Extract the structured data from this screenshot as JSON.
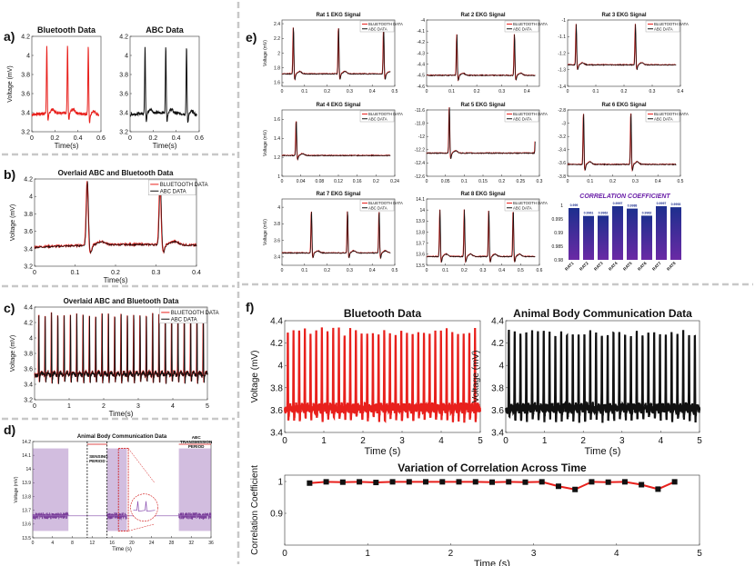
{
  "panel_letters": {
    "a": "a)",
    "b": "b)",
    "c": "c)",
    "d": "d)",
    "e": "e)",
    "f": "f)"
  },
  "colors": {
    "bluetooth": "#e8201c",
    "abc": "#111111",
    "bar_top": "#1d2f8e",
    "bar_bottom": "#6a2aa5",
    "corr_title": "#6a1fa8",
    "purple": "#9b6cb8",
    "divider": "#c8c8c8"
  },
  "legend": {
    "bluetooth": "BLUETOOTH DATA",
    "abc": "ABC DATA"
  },
  "axis_labels": {
    "voltage": "Voltage (mV)",
    "time": "Time(s)",
    "time_f": "Time (s)",
    "corr": "Correlation Coefficient",
    "voltage_d": "Voltage (mV)",
    "time_d": "Time (s)"
  },
  "chart_data": [
    {
      "id": "a1",
      "type": "line",
      "title": "Bluetooth Data",
      "xlabel": "Time(s)",
      "ylabel": "Voltage (mV)",
      "xlim": [
        0,
        0.6
      ],
      "ylim": [
        3.2,
        4.2
      ],
      "xticks": [
        "0",
        "0.2",
        "0.4",
        "0.6"
      ],
      "yticks": [
        "3.2",
        "3.4",
        "3.6",
        "3.8",
        "4",
        "4.2"
      ],
      "series": [
        {
          "name": "BLUETOOTH DATA",
          "peaks": [
            0.13,
            0.31,
            0.49
          ]
        }
      ]
    },
    {
      "id": "a2",
      "type": "line",
      "title": "ABC Data",
      "xlabel": "Time(s)",
      "ylabel": "",
      "xlim": [
        0,
        0.6
      ],
      "ylim": [
        3.2,
        4.2
      ],
      "xticks": [
        "0",
        "0.2",
        "0.4",
        "0.6"
      ],
      "yticks": [
        "3.2",
        "3.4",
        "3.6",
        "3.8",
        "4",
        "4.2"
      ],
      "series": [
        {
          "name": "ABC DATA",
          "peaks": [
            0.13,
            0.31,
            0.49
          ]
        }
      ]
    },
    {
      "id": "b",
      "type": "line",
      "title": "Overlaid ABC and Bluetooth Data",
      "xlabel": "Time(s)",
      "ylabel": "Voltage (mV)",
      "xlim": [
        0,
        0.4
      ],
      "ylim": [
        3.2,
        4.2
      ],
      "xticks": [
        "0",
        "0.1",
        "0.2",
        "0.3",
        "0.4"
      ],
      "yticks": [
        "3.2",
        "3.4",
        "3.6",
        "3.8",
        "4",
        "4.2"
      ],
      "legend": [
        "BLUETOOTH DATA",
        "ABC DATA"
      ]
    },
    {
      "id": "c",
      "type": "line",
      "title": "Overlaid ABC and Bluetooth Data",
      "xlabel": "Time(s)",
      "ylabel": "Voltage (mV)",
      "xlim": [
        0,
        5
      ],
      "ylim": [
        3.2,
        4.4
      ],
      "xticks": [
        "0",
        "1",
        "2",
        "3",
        "4",
        "5"
      ],
      "yticks": [
        "3.2",
        "3.4",
        "3.6",
        "3.8",
        "4",
        "4.2",
        "4.4"
      ],
      "legend": [
        "BLUETOOTH DATA",
        "ABC DATA"
      ]
    },
    {
      "id": "d",
      "type": "line",
      "title": "Animal Body Communication Data",
      "xlabel": "Time (s)",
      "ylabel": "Voltage (mV)",
      "xlim": [
        0,
        36
      ],
      "ylim": [
        13.5,
        14.2
      ],
      "xticks": [
        "0",
        "4",
        "8",
        "12",
        "16",
        "20",
        "24",
        "28",
        "32",
        "36"
      ],
      "yticks": [
        "13.5",
        "13.6",
        "13.7",
        "13.8",
        "13.9",
        "14",
        "14.1",
        "14.2"
      ],
      "annotations": [
        "SENSING PERIOD",
        "ABC TRANSMISSION PERIOD"
      ]
    },
    {
      "id": "e1",
      "type": "line",
      "title": "Rat 1 EKG Signal",
      "xlabel": "",
      "ylabel": "Voltage (mV)",
      "xlim": [
        0,
        0.5
      ],
      "ylim": [
        1.55,
        2.45
      ],
      "xticks": [
        "0",
        "0.1",
        "0.2",
        "0.3",
        "0.4",
        "0.5"
      ],
      "yticks": [
        "1.6",
        "1.8",
        "2",
        "2.2",
        "2.4"
      ],
      "legend": [
        "BLUETOOTH DATA",
        "ABC DATA"
      ]
    },
    {
      "id": "e2",
      "type": "line",
      "title": "Rat 2 EKG Signal",
      "xlabel": "",
      "ylabel": "",
      "xlim": [
        0,
        0.45
      ],
      "ylim": [
        -4.6,
        -4.0
      ],
      "xticks": [
        "0",
        "0.1",
        "0.2",
        "0.3",
        "0.4"
      ],
      "yticks": [
        "-4.6",
        "-4.5",
        "-4.4",
        "-4.3",
        "-4.2",
        "-4.1",
        "-4"
      ],
      "legend": [
        "BLUETOOTH DATA",
        "ABC DATA"
      ]
    },
    {
      "id": "e3",
      "type": "line",
      "title": "Rat 3 EKG Signal",
      "xlabel": "",
      "ylabel": "",
      "xlim": [
        0,
        0.4
      ],
      "ylim": [
        -1.4,
        -1.0
      ],
      "xticks": [
        "0",
        "0.1",
        "0.2",
        "0.3",
        "0.4"
      ],
      "yticks": [
        "-1.4",
        "-1.3",
        "-1.2",
        "-1.1",
        "-1"
      ],
      "legend": [
        "BLUETOOTH DATA",
        "ABC DATA"
      ]
    },
    {
      "id": "e4",
      "type": "line",
      "title": "Rat 4 EKG Signal",
      "xlabel": "",
      "ylabel": "Voltage (mV)",
      "xlim": [
        0,
        0.24
      ],
      "ylim": [
        1.0,
        1.7
      ],
      "xticks": [
        "0",
        "0.04",
        "0.08",
        "0.12",
        "0.16",
        "0.2",
        "0.24"
      ],
      "yticks": [
        "1",
        "1.2",
        "1.4",
        "1.6"
      ],
      "legend": [
        "BLUETOOTH DATA",
        "ABC DATA"
      ]
    },
    {
      "id": "e5",
      "type": "line",
      "title": "Rat 5 EKG Signal",
      "xlabel": "",
      "ylabel": "",
      "xlim": [
        0,
        0.3
      ],
      "ylim": [
        -12.6,
        -11.6
      ],
      "xticks": [
        "0",
        "0.05",
        "0.1",
        "0.15",
        "0.2",
        "0.25",
        "0.3"
      ],
      "yticks": [
        "-12.6",
        "-12.4",
        "-12.2",
        "-12",
        "-11.8",
        "-11.6"
      ],
      "legend": [
        "BLUETOOTH DATA",
        "ABC DATA"
      ]
    },
    {
      "id": "e6",
      "type": "line",
      "title": "Rat 6 EKG Signal",
      "xlabel": "",
      "ylabel": "",
      "xlim": [
        0,
        0.5
      ],
      "ylim": [
        -3.8,
        -2.8
      ],
      "xticks": [
        "0",
        "0.1",
        "0.2",
        "0.3",
        "0.4",
        "0.5"
      ],
      "yticks": [
        "-3.8",
        "-3.6",
        "-3.4",
        "-3.2",
        "-3",
        "-2.8"
      ],
      "legend": [
        "BLUETOOTH DATA",
        "ABC DATA"
      ]
    },
    {
      "id": "e7",
      "type": "line",
      "title": "Rat 7 EKG Signal",
      "xlabel": "",
      "ylabel": "Voltage (mV)",
      "xlim": [
        0,
        0.5
      ],
      "ylim": [
        3.3,
        4.1
      ],
      "xticks": [
        "0",
        "0.1",
        "0.2",
        "0.3",
        "0.4",
        "0.5"
      ],
      "yticks": [
        "3.4",
        "3.6",
        "3.8",
        "4"
      ],
      "legend": [
        "BLUETOOTH DATA",
        "ABC DATA"
      ]
    },
    {
      "id": "e8",
      "type": "line",
      "title": "Rat 8 EKG Signal",
      "xlabel": "",
      "ylabel": "",
      "xlim": [
        0,
        0.6
      ],
      "ylim": [
        13.5,
        14.1
      ],
      "xticks": [
        "0",
        "0.1",
        "0.2",
        "0.3",
        "0.4",
        "0.5",
        "0.6"
      ],
      "yticks": [
        "13.5",
        "13.6",
        "13.7",
        "13.8",
        "13.9",
        "14",
        "14.1"
      ],
      "legend": [
        "BLUETOOTH DATA",
        "ABC DATA"
      ]
    },
    {
      "id": "corr",
      "type": "bar",
      "title": "CORRELATION COEFFICIENT",
      "categories": [
        "RAT1",
        "RAT2",
        "RAT3",
        "RAT4",
        "RAT5",
        "RAT6",
        "RAT7",
        "RAT8"
      ],
      "values": [
        0.999,
        0.9961,
        0.9962,
        0.9997,
        0.9988,
        0.9962,
        0.9997,
        0.9993
      ],
      "value_labels": [
        "0.999",
        "0.9961",
        "0.9962",
        "0.9997",
        "0.9988",
        "0.9962",
        "0.9997",
        "0.9993"
      ],
      "ylim": [
        0.98,
        1.0
      ],
      "yticks": [
        "0.98",
        "0.985",
        "0.99",
        "0.995",
        "1"
      ]
    },
    {
      "id": "f1",
      "type": "line",
      "title": "Bluetooth Data",
      "xlabel": "Time (s)",
      "ylabel": "Voltage (mV)",
      "xlim": [
        0,
        5
      ],
      "ylim": [
        3.4,
        4.4
      ],
      "xticks": [
        "0",
        "1",
        "2",
        "3",
        "4",
        "5"
      ],
      "yticks": [
        "3.4",
        "3.6",
        "3.8",
        "4",
        "4.2",
        "4.4"
      ]
    },
    {
      "id": "f2",
      "type": "line",
      "title": "Animal Body Communication Data",
      "xlabel": "Time (s)",
      "ylabel": "Voltage (mV)",
      "xlim": [
        0,
        5
      ],
      "ylim": [
        3.4,
        4.4
      ],
      "xticks": [
        "0",
        "1",
        "2",
        "3",
        "4",
        "5"
      ],
      "yticks": [
        "3.4",
        "3.6",
        "3.8",
        "4",
        "4.2",
        "4.4"
      ]
    },
    {
      "id": "f3",
      "type": "line",
      "title": "Variation of Correlation Across Time",
      "xlabel": "Time (s)",
      "ylabel": "Correlation Coefficient",
      "xlim": [
        0,
        5
      ],
      "ylim": [
        0.8,
        1.02
      ],
      "xticks": [
        "0",
        "1",
        "2",
        "3",
        "4",
        "5"
      ],
      "yticks": [
        "0.9",
        "1"
      ],
      "x": [
        0.3,
        0.5,
        0.7,
        0.9,
        1.1,
        1.3,
        1.5,
        1.7,
        1.9,
        2.1,
        2.3,
        2.5,
        2.7,
        2.9,
        3.1,
        3.3,
        3.5,
        3.7,
        3.9,
        4.1,
        4.3,
        4.5,
        4.7
      ],
      "values": [
        0.995,
        0.999,
        0.998,
        0.999,
        0.997,
        0.999,
        0.999,
        0.999,
        0.999,
        0.999,
        0.999,
        0.998,
        0.999,
        0.998,
        0.999,
        0.985,
        0.975,
        0.999,
        0.998,
        0.999,
        0.99,
        0.976,
        0.999
      ]
    }
  ]
}
